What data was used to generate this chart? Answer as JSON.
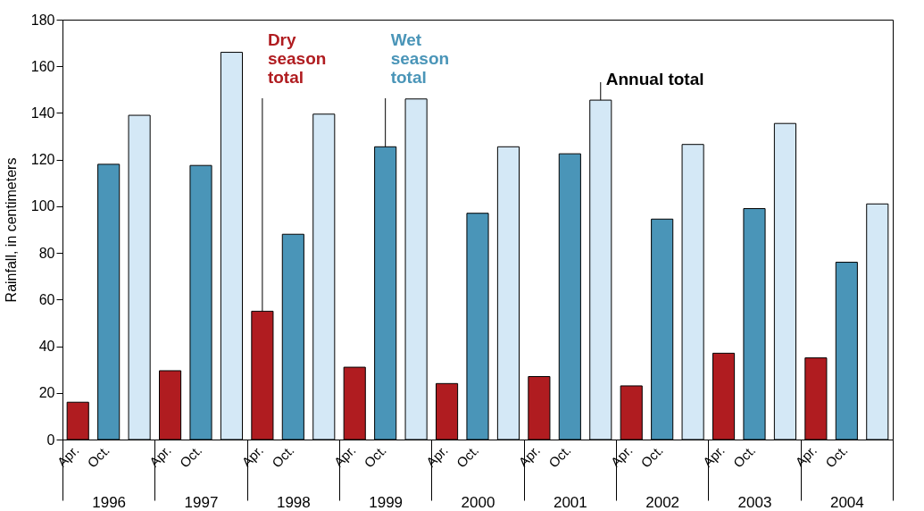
{
  "chart_data": {
    "type": "bar",
    "ylabel": "Rainfall, in centimeters",
    "categories": [
      "1996",
      "1997",
      "1998",
      "1999",
      "2000",
      "2001",
      "2002",
      "2003",
      "2004"
    ],
    "series": [
      {
        "name": "Dry season total",
        "color": "#b01c20",
        "values": [
          16,
          29.5,
          55,
          31,
          24,
          27,
          23,
          37,
          35
        ]
      },
      {
        "name": "Wet season total",
        "color": "#4a95b8",
        "values": [
          118,
          117.5,
          88,
          125.5,
          97,
          122.5,
          94.5,
          99,
          76
        ]
      },
      {
        "name": "Annual total",
        "color": "#d4e8f6",
        "values": [
          139,
          166,
          139.5,
          146,
          125.5,
          145.5,
          126.5,
          135.5,
          101
        ]
      }
    ],
    "ylim": [
      0,
      180
    ],
    "yticks": [
      0,
      20,
      40,
      60,
      80,
      100,
      120,
      140,
      160,
      180
    ],
    "grid": false,
    "legend": false,
    "annotations": [
      "Apr.",
      "Oct.",
      "Apr.",
      "Oct.",
      "Apr.",
      "Oct.",
      "Apr.",
      "Oct.",
      "Apr.",
      "Oct.",
      "Apr.",
      "Oct.",
      "Apr.",
      "Oct.",
      "Apr.",
      "Oct.",
      "Apr.",
      "Oct."
    ]
  }
}
